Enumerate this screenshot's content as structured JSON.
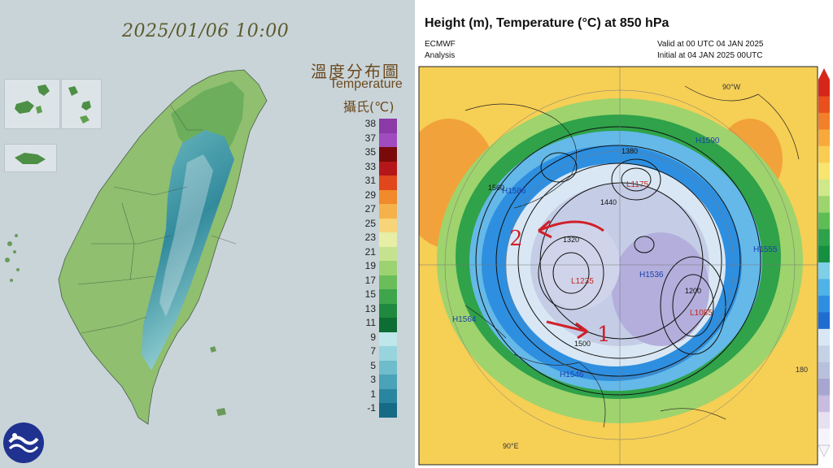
{
  "taiwan_map": {
    "timestamp": "2025/01/06 10:00",
    "title_cn": "溫度分布圖",
    "title_en": "Temperature",
    "unit": "攝氏(℃)",
    "logo": "cwa-logo-icon",
    "legend": [
      {
        "label": "38",
        "color": "#8b3aa8"
      },
      {
        "label": "37",
        "color": "#a04bbf"
      },
      {
        "label": "35",
        "color": "#7a0a0a"
      },
      {
        "label": "33",
        "color": "#b5161a"
      },
      {
        "label": "31",
        "color": "#e0471a"
      },
      {
        "label": "29",
        "color": "#f08a2a"
      },
      {
        "label": "27",
        "color": "#f5b24b"
      },
      {
        "label": "25",
        "color": "#f7d478"
      },
      {
        "label": "23",
        "color": "#e7eea6"
      },
      {
        "label": "21",
        "color": "#c5e38e"
      },
      {
        "label": "19",
        "color": "#9cd270"
      },
      {
        "label": "17",
        "color": "#6bbd5a"
      },
      {
        "label": "15",
        "color": "#3ea54b"
      },
      {
        "label": "13",
        "color": "#1f8a3f"
      },
      {
        "label": "11",
        "color": "#0e6d33"
      },
      {
        "label": "9",
        "color": "#bfe6ea"
      },
      {
        "label": "7",
        "color": "#98d4dd"
      },
      {
        "label": "5",
        "color": "#6fbccb"
      },
      {
        "label": "3",
        "color": "#4aa3b8"
      },
      {
        "label": "1",
        "color": "#2a86a0"
      },
      {
        "label": "-1",
        "color": "#166a85"
      }
    ]
  },
  "weather_map": {
    "title": "Height (m), Temperature (°C) at 850 hPa",
    "source": "ECMWF",
    "product": "Analysis",
    "valid": "Valid at 00 UTC 04 JAN 2025",
    "initial": "Initial at 04 JAN 2025 00UTC",
    "annotations": [
      {
        "label": "1",
        "color": "#d0202a"
      },
      {
        "label": "2",
        "color": "#d0202a"
      }
    ],
    "pressure_labels": [
      {
        "text": "H1590",
        "color": "#1a3fae"
      },
      {
        "text": "H1555",
        "color": "#1a3fae"
      },
      {
        "text": "H1586",
        "color": "#1a3fae"
      },
      {
        "text": "H1564",
        "color": "#1a3fae"
      },
      {
        "text": "H1546",
        "color": "#1a3fae"
      },
      {
        "text": "H1536",
        "color": "#1a3fae"
      },
      {
        "text": "L1175",
        "color": "#c0281e"
      },
      {
        "text": "L1085",
        "color": "#c0281e"
      },
      {
        "text": "L1235",
        "color": "#c0281e"
      }
    ],
    "contour_labels": [
      "1380",
      "1440",
      "1500",
      "1560",
      "1320",
      "1200"
    ],
    "longitude_labels": [
      "90°W",
      "90°E",
      "180"
    ],
    "colorbar": [
      "#d6261c",
      "#e9501e",
      "#f2802a",
      "#f7a93a",
      "#f9cd52",
      "#f7e56f",
      "#cfe88a",
      "#9ed46e",
      "#5fbd55",
      "#2ea24a",
      "#159040",
      "#7fcfe8",
      "#4fb3e8",
      "#2e8fe0",
      "#1f6dd0",
      "#d9e7f4",
      "#c5d2e6",
      "#b9c0dc",
      "#a8a6d0",
      "#c8bde0",
      "#e6e0f0",
      "#f6f4fa"
    ]
  }
}
